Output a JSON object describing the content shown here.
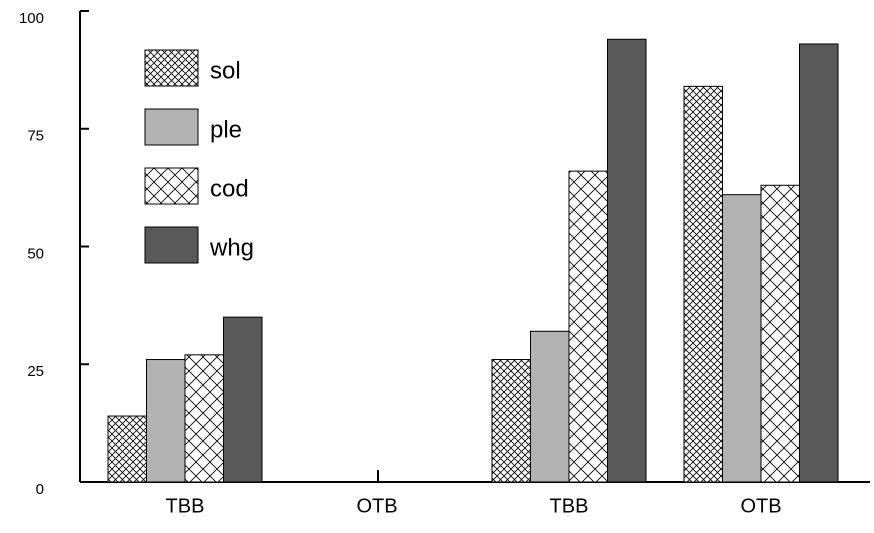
{
  "chart_data": {
    "type": "bar",
    "categories": [
      "TBB",
      "OTB",
      "TBB",
      "OTB"
    ],
    "series": [
      {
        "name": "sol",
        "color": "#ffffff",
        "pattern": "fine-crosshatch",
        "values": [
          14,
          null,
          26,
          84
        ]
      },
      {
        "name": "ple",
        "color": "#b2b2b2",
        "values": [
          26,
          null,
          32,
          61
        ]
      },
      {
        "name": "cod",
        "color": "#ffffff",
        "pattern": "coarse-crosshatch",
        "values": [
          27,
          null,
          66,
          63
        ]
      },
      {
        "name": "whg",
        "color": "#595959",
        "values": [
          35,
          null,
          94,
          93
        ]
      }
    ],
    "ylim": [
      0,
      100
    ],
    "yticks": [
      0,
      25,
      50,
      75,
      100
    ],
    "legend": "top-left"
  }
}
